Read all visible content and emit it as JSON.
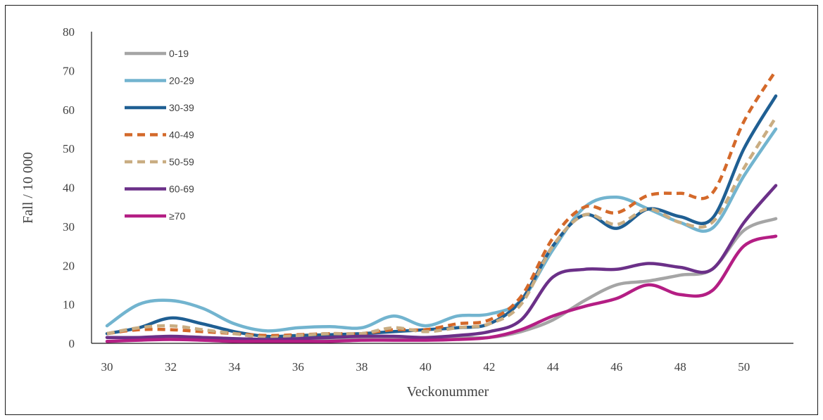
{
  "chart_data": {
    "type": "line",
    "title": "",
    "xlabel": "Veckonummer",
    "ylabel": "Fall / 10 000",
    "xlim": [
      30,
      51
    ],
    "ylim": [
      0,
      80
    ],
    "x_ticks": [
      "30",
      "32",
      "34",
      "36",
      "38",
      "40",
      "42",
      "44",
      "46",
      "48",
      "50"
    ],
    "y_ticks": [
      "0",
      "10",
      "20",
      "30",
      "40",
      "50",
      "60",
      "70",
      "80"
    ],
    "legend_position": "top-left",
    "grid": false,
    "x": [
      30,
      31,
      32,
      33,
      34,
      35,
      36,
      37,
      38,
      39,
      40,
      41,
      42,
      43,
      44,
      45,
      46,
      47,
      48,
      49,
      50,
      51
    ],
    "series": [
      {
        "name": "0-19",
        "color": "#a5a5a5",
        "dash": "solid",
        "values": [
          1.5,
          1.5,
          1.5,
          1.5,
          1.2,
          1.0,
          1.0,
          1.2,
          1.5,
          1.5,
          1.5,
          1.5,
          1.5,
          3,
          6,
          11,
          15,
          16,
          17.5,
          19,
          29,
          32
        ]
      },
      {
        "name": "20-29",
        "color": "#72b4cf",
        "dash": "solid",
        "values": [
          4.5,
          10,
          11,
          9,
          5,
          3.2,
          4,
          4.3,
          4,
          7,
          4.5,
          7,
          7.5,
          11,
          24,
          35,
          37.5,
          34.5,
          31,
          29.5,
          43,
          55
        ]
      },
      {
        "name": "30-39",
        "color": "#1f5f93",
        "dash": "solid",
        "values": [
          2.5,
          4,
          6.5,
          5,
          3,
          1.8,
          2,
          2.2,
          2.5,
          3,
          3.5,
          4,
          5,
          11,
          25,
          33,
          29.5,
          34.5,
          32.5,
          32,
          50,
          63.5
        ]
      },
      {
        "name": "40-49",
        "color": "#d4692a",
        "dash": "dashed",
        "values": [
          2.5,
          3.5,
          3.5,
          3,
          2.5,
          2.0,
          2.2,
          2.5,
          2.5,
          3.5,
          3.5,
          5,
          6,
          12,
          27,
          35,
          33.5,
          38,
          38.5,
          38.5,
          57,
          70
        ]
      },
      {
        "name": "50-59",
        "color": "#c9ad82",
        "dash": "dashed",
        "values": [
          2.5,
          4,
          4.5,
          3.5,
          2.5,
          1.5,
          2,
          2.5,
          2.5,
          4,
          3,
          4,
          5,
          10,
          25,
          33,
          30.5,
          34.5,
          31,
          31,
          45,
          58
        ]
      },
      {
        "name": "60-69",
        "color": "#6b3088",
        "dash": "solid",
        "values": [
          1.5,
          1.5,
          1.8,
          1.5,
          1.2,
          1.0,
          1.2,
          1.5,
          1.8,
          1.8,
          1.5,
          2,
          3,
          6,
          17,
          19,
          19,
          20.5,
          19.5,
          19,
          31,
          40.5
        ]
      },
      {
        "name": "≥70",
        "color": "#b41e84",
        "dash": "solid",
        "values": [
          0.5,
          0.8,
          1.0,
          0.8,
          0.5,
          0.5,
          0.5,
          0.5,
          0.8,
          0.8,
          0.8,
          1.0,
          1.5,
          3.5,
          7,
          9.5,
          11.5,
          15,
          12.5,
          13.5,
          25,
          27.5
        ]
      }
    ]
  }
}
